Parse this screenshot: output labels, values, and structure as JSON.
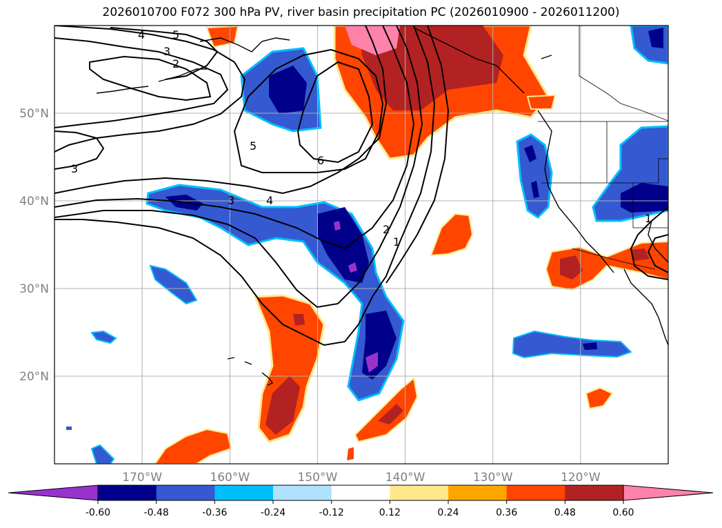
{
  "title": "2026010700 F072 300 hPa PV, river basin precipitation PC (2026010900 - 2026011200)",
  "map": {
    "extent": {
      "lon_min": -180,
      "lon_max": -110,
      "lat_min": 10,
      "lat_max": 60
    },
    "lat_ticks": [
      {
        "value": 50,
        "label": "50°N"
      },
      {
        "value": 40,
        "label": "40°N"
      },
      {
        "value": 30,
        "label": "30°N"
      },
      {
        "value": 20,
        "label": "20°N"
      }
    ],
    "lon_ticks": [
      {
        "value": -170,
        "label": "170°W"
      },
      {
        "value": -160,
        "label": "160°W"
      },
      {
        "value": -150,
        "label": "150°W"
      },
      {
        "value": -140,
        "label": "140°W"
      },
      {
        "value": -130,
        "label": "130°W"
      },
      {
        "value": -120,
        "label": "120°W"
      }
    ],
    "contour_labels": [
      "5",
      "4",
      "3",
      "2",
      "3",
      "5",
      "6",
      "3",
      "4",
      "2",
      "1",
      "1"
    ]
  },
  "colorbar": {
    "tick_labels": [
      "-0.60",
      "-0.48",
      "-0.36",
      "-0.24",
      "-0.12",
      "0.12",
      "0.24",
      "0.36",
      "0.48",
      "0.60"
    ],
    "colors": [
      "#9932cc",
      "#00008b",
      "#3559d0",
      "#00bfff",
      "#b0e2ff",
      "#ffffff",
      "#ffe88a",
      "#ffa500",
      "#ff4500",
      "#b22222",
      "#ff82ab"
    ]
  }
}
